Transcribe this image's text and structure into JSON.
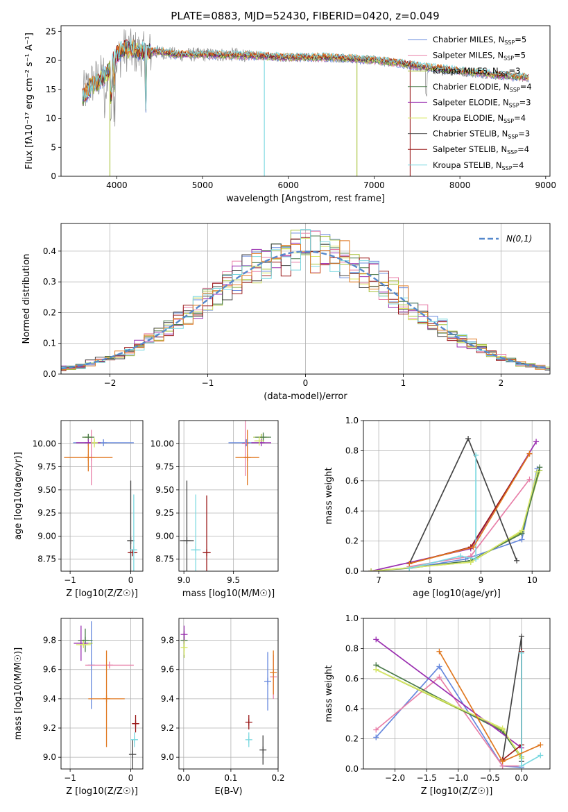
{
  "figure_title": "PLATE=0883, MJD=52430, FIBERID=0420, z=0.049",
  "colors": {
    "chabrier_miles": "#6688dd",
    "salpeter_miles": "#e87fa8",
    "kroupa_miles": "#a7c23a",
    "chabrier_elodie": "#4a7a4a",
    "salpeter_elodie": "#9a2eb0",
    "kroupa_elodie": "#d8e86a",
    "chabrier_stelib": "#444444",
    "salpeter_stelib": "#9a1a1a",
    "kroupa_stelib": "#7ad8e0",
    "data_spectrum": "#888888",
    "orange_model": "#e07820",
    "normal_curve": "#5588cc",
    "grid": "#b0b0b0"
  },
  "chart_data": [
    {
      "id": "spectrum",
      "type": "line",
      "title": "PLATE=0883, MJD=52430, FIBERID=0420, z=0.049",
      "xlabel": "wavelength [Angstrom, rest frame]",
      "ylabel": "Flux [f$_\\lambda$10$^{-17}$ erg cm$^{-2}$ s$^{-1}$ A$^{-1}$]",
      "ylabel_display": "Flux [fλ10⁻¹⁷ erg cm⁻² s⁻¹ A⁻¹]",
      "xlim": [
        3350,
        9050
      ],
      "ylim": [
        0,
        26
      ],
      "xticks": [
        4000,
        5000,
        6000,
        7000,
        8000,
        9000
      ],
      "yticks": [
        0,
        5,
        10,
        15,
        20,
        25
      ],
      "grid": false,
      "legend_position": "top-right",
      "legend": [
        {
          "label": "Chabrier MILES, N",
          "sub": "SSP",
          "tail": "=5",
          "color_key": "chabrier_miles"
        },
        {
          "label": "Salpeter MILES, N",
          "sub": "SSP",
          "tail": "=5",
          "color_key": "salpeter_miles"
        },
        {
          "label": "Kroupa MILES, N",
          "sub": "SSP",
          "tail": "=3",
          "color_key": "kroupa_miles"
        },
        {
          "label": "Chabrier ELODIE, N",
          "sub": "SSP",
          "tail": "=4",
          "color_key": "chabrier_elodie"
        },
        {
          "label": "Salpeter ELODIE, N",
          "sub": "SSP",
          "tail": "=3",
          "color_key": "salpeter_elodie"
        },
        {
          "label": "Kroupa ELODIE, N",
          "sub": "SSP",
          "tail": "=4",
          "color_key": "kroupa_elodie"
        },
        {
          "label": "Chabrier STELIB, N",
          "sub": "SSP",
          "tail": "=3",
          "color_key": "chabrier_stelib"
        },
        {
          "label": "Salpeter STELIB, N",
          "sub": "SSP",
          "tail": "=4",
          "color_key": "salpeter_stelib"
        },
        {
          "label": "Kroupa STELIB, N",
          "sub": "SSP",
          "tail": "=4",
          "color_key": "kroupa_stelib"
        }
      ],
      "data_envelope": {
        "x": [
          3600,
          3700,
          3800,
          3900,
          4000,
          4100,
          4200,
          4300,
          4500,
          4700,
          5000,
          5500,
          6000,
          6500,
          7000,
          7300,
          7600,
          8000,
          8400,
          8800
        ],
        "y": [
          14,
          16,
          17,
          18,
          20,
          22,
          21.5,
          21,
          21.5,
          21,
          21,
          21,
          20.5,
          20.5,
          20,
          19.5,
          18.5,
          18,
          17.5,
          17
        ]
      },
      "model_envelope": {
        "x": [
          3600,
          3700,
          3800,
          3900,
          4000,
          4100,
          4200,
          4300,
          4500,
          4700,
          5000,
          5500,
          6000,
          6500,
          7000,
          7300,
          7600,
          8000,
          8400,
          8800
        ],
        "y": [
          13.5,
          15.5,
          16.5,
          18,
          21,
          22,
          21.8,
          21.5,
          21.5,
          21,
          21,
          20.8,
          20.5,
          20.5,
          20,
          19.5,
          18.8,
          18.2,
          17.5,
          17
        ]
      },
      "sky_dips": [
        {
          "x": 3920,
          "color_key": "kroupa_miles"
        },
        {
          "x": 5720,
          "color_key": "kroupa_stelib"
        },
        {
          "x": 6800,
          "color_key": "kroupa_miles"
        },
        {
          "x": 7420,
          "color_key": "salpeter_stelib"
        }
      ]
    },
    {
      "id": "residual_hist",
      "type": "histogram",
      "xlabel": "(data-model)/error",
      "ylabel": "Normed distribution",
      "xlim": [
        -2.5,
        2.5
      ],
      "ylim": [
        0,
        0.49
      ],
      "xticks": [
        -2,
        -1,
        0,
        1,
        2
      ],
      "yticks": [
        0.0,
        0.1,
        0.2,
        0.3,
        0.4
      ],
      "grid": true,
      "legend_position": "top-right",
      "legend_label": "N(0,1)",
      "bin_width": 0.1,
      "models": [
        "chabrier_miles",
        "salpeter_miles",
        "kroupa_miles",
        "chabrier_elodie",
        "salpeter_elodie",
        "kroupa_elodie",
        "chabrier_stelib",
        "salpeter_stelib",
        "kroupa_stelib",
        "orange_model"
      ]
    },
    {
      "id": "age_vs_Z",
      "type": "scatter",
      "xlabel": "Z [log10(Z/Z☉)]",
      "ylabel": "age  [log10(age/yr)]",
      "xlim": [
        -1.15,
        0.2
      ],
      "ylim": [
        8.62,
        10.25
      ],
      "xticks": [
        -1,
        0
      ],
      "yticks": [
        8.75,
        9.0,
        9.25,
        9.5,
        9.75,
        10.0
      ],
      "grid": true,
      "points": [
        {
          "x": -0.45,
          "y": 10.01,
          "xerr": 0.5,
          "yerr": 0.0,
          "color_key": "chabrier_miles"
        },
        {
          "x": -0.65,
          "y": 9.85,
          "xerr": 0.0,
          "yerr": 0.3,
          "color_key": "salpeter_miles"
        },
        {
          "x": -0.7,
          "y": 10.07,
          "xerr": 0.1,
          "yerr": 0.0,
          "color_key": "kroupa_miles"
        },
        {
          "x": -0.7,
          "y": 10.07,
          "xerr": 0.1,
          "yerr": 0.0,
          "color_key": "chabrier_elodie"
        },
        {
          "x": -0.7,
          "y": 10.01,
          "xerr": 0.2,
          "yerr": 0.0,
          "color_key": "salpeter_elodie"
        },
        {
          "x": -0.6,
          "y": 10.01,
          "xerr": 0.05,
          "yerr": 0.05,
          "color_key": "kroupa_elodie"
        },
        {
          "x": 0.0,
          "y": 8.95,
          "xerr": 0.06,
          "yerr": 0.65,
          "color_key": "chabrier_stelib"
        },
        {
          "x": 0.03,
          "y": 8.82,
          "xerr": 0.08,
          "yerr": 0.0,
          "color_key": "salpeter_stelib"
        },
        {
          "x": 0.05,
          "y": 8.85,
          "xerr": 0.05,
          "yerr": 0.6,
          "color_key": "kroupa_stelib"
        },
        {
          "x": -0.7,
          "y": 9.85,
          "xerr": 0.4,
          "yerr": 0.15,
          "color_key": "orange_model"
        }
      ]
    },
    {
      "id": "age_vs_mass",
      "type": "scatter",
      "xlabel": "mass [log10(M/M☉)]",
      "ylabel": "",
      "xlim": [
        8.95,
        9.95
      ],
      "ylim": [
        8.62,
        10.25
      ],
      "xticks": [
        9.0,
        9.5
      ],
      "yticks": [
        8.75,
        9.0,
        9.25,
        9.5,
        9.75,
        10.0
      ],
      "grid": true,
      "points": [
        {
          "x": 9.63,
          "y": 10.01,
          "xerr": 0.18,
          "yerr": 0.0,
          "color_key": "chabrier_miles"
        },
        {
          "x": 9.62,
          "y": 10.0,
          "xerr": 0.0,
          "yerr": 0.35,
          "color_key": "salpeter_miles"
        },
        {
          "x": 9.78,
          "y": 10.07,
          "xerr": 0.08,
          "yerr": 0.0,
          "color_key": "kroupa_miles"
        },
        {
          "x": 9.8,
          "y": 10.07,
          "xerr": 0.08,
          "yerr": 0.05,
          "color_key": "chabrier_elodie"
        },
        {
          "x": 9.78,
          "y": 10.01,
          "xerr": 0.1,
          "yerr": 0.0,
          "color_key": "salpeter_elodie"
        },
        {
          "x": 9.76,
          "y": 10.03,
          "xerr": 0.05,
          "yerr": 0.05,
          "color_key": "kroupa_elodie"
        },
        {
          "x": 9.03,
          "y": 8.95,
          "xerr": 0.07,
          "yerr": 0.65,
          "color_key": "chabrier_stelib"
        },
        {
          "x": 9.23,
          "y": 8.82,
          "xerr": 0.04,
          "yerr": 0.62,
          "color_key": "salpeter_stelib"
        },
        {
          "x": 9.12,
          "y": 8.85,
          "xerr": 0.05,
          "yerr": 0.6,
          "color_key": "kroupa_stelib"
        },
        {
          "x": 9.64,
          "y": 9.85,
          "xerr": 0.12,
          "yerr": 0.3,
          "color_key": "orange_model"
        }
      ]
    },
    {
      "id": "massweight_vs_age",
      "type": "line",
      "xlabel": "age  [log10(age/yr)]",
      "ylabel": "mass weight",
      "xlim": [
        6.7,
        10.35
      ],
      "ylim": [
        0,
        1.0
      ],
      "xticks": [
        7,
        8,
        9,
        10
      ],
      "yticks": [
        0.0,
        0.2,
        0.4,
        0.6,
        0.8,
        1.0
      ],
      "grid": true,
      "series": [
        {
          "color_key": "chabrier_miles",
          "x": [
            7.6,
            8.7,
            9.8,
            10.1
          ],
          "y": [
            0.02,
            0.08,
            0.21,
            0.68
          ]
        },
        {
          "color_key": "salpeter_miles",
          "x": [
            7.6,
            8.8,
            9.95
          ],
          "y": [
            0.03,
            0.1,
            0.61
          ]
        },
        {
          "color_key": "kroupa_miles",
          "x": [
            6.85,
            8.8,
            9.8,
            10.15
          ],
          "y": [
            0.0,
            0.06,
            0.26,
            0.67
          ]
        },
        {
          "color_key": "chabrier_elodie",
          "x": [
            6.85,
            7.6,
            8.8,
            9.8,
            10.15
          ],
          "y": [
            0.0,
            0.02,
            0.07,
            0.25,
            0.69
          ]
        },
        {
          "color_key": "salpeter_elodie",
          "x": [
            6.85,
            8.8,
            10.08
          ],
          "y": [
            0.0,
            0.15,
            0.86
          ]
        },
        {
          "color_key": "kroupa_elodie",
          "x": [
            6.85,
            8.8,
            9.8,
            10.1
          ],
          "y": [
            0.0,
            0.06,
            0.27,
            0.66
          ]
        },
        {
          "color_key": "chabrier_stelib",
          "x": [
            7.6,
            8.75,
            9.7
          ],
          "y": [
            0.05,
            0.88,
            0.07
          ]
        },
        {
          "color_key": "salpeter_stelib",
          "x": [
            7.6,
            8.8,
            9.95
          ],
          "y": [
            0.05,
            0.16,
            0.78
          ]
        },
        {
          "color_key": "kroupa_stelib",
          "x": [
            7.6,
            8.6,
            8.9,
            8.9
          ],
          "y": [
            0.02,
            0.1,
            0.08,
            0.77
          ]
        },
        {
          "color_key": "orange_model",
          "x": [
            7.6,
            8.85,
            9.95
          ],
          "y": [
            0.05,
            0.16,
            0.78
          ]
        }
      ]
    },
    {
      "id": "mass_vs_Z",
      "type": "scatter",
      "xlabel": "Z [log10(Z/Z☉)]",
      "ylabel": "mass [log10(M/M☉)]",
      "xlim": [
        -1.15,
        0.2
      ],
      "ylim": [
        8.92,
        9.95
      ],
      "xticks": [
        -1,
        0
      ],
      "yticks": [
        9.0,
        9.2,
        9.4,
        9.6,
        9.8
      ],
      "grid": true,
      "points": [
        {
          "x": -0.65,
          "y": 9.63,
          "xerr": 0.0,
          "yerr": 0.3,
          "color_key": "chabrier_miles"
        },
        {
          "x": -0.35,
          "y": 9.63,
          "xerr": 0.4,
          "yerr": 0.0,
          "color_key": "salpeter_miles"
        },
        {
          "x": -0.78,
          "y": 9.78,
          "xerr": 0.15,
          "yerr": 0.0,
          "color_key": "kroupa_miles"
        },
        {
          "x": -0.75,
          "y": 9.8,
          "xerr": 0.12,
          "yerr": 0.08,
          "color_key": "chabrier_elodie"
        },
        {
          "x": -0.82,
          "y": 9.78,
          "xerr": 0.12,
          "yerr": 0.12,
          "color_key": "salpeter_elodie"
        },
        {
          "x": -0.78,
          "y": 9.77,
          "xerr": 0.12,
          "yerr": 0.0,
          "color_key": "kroupa_elodie"
        },
        {
          "x": 0.03,
          "y": 9.02,
          "xerr": 0.06,
          "yerr": 0.1,
          "color_key": "chabrier_stelib"
        },
        {
          "x": 0.08,
          "y": 9.23,
          "xerr": 0.06,
          "yerr": 0.06,
          "color_key": "salpeter_stelib"
        },
        {
          "x": 0.06,
          "y": 9.12,
          "xerr": 0.06,
          "yerr": 0.05,
          "color_key": "kroupa_stelib"
        },
        {
          "x": -0.4,
          "y": 9.4,
          "xerr": 0.3,
          "yerr": 0.33,
          "color_key": "orange_model"
        }
      ]
    },
    {
      "id": "mass_vs_ebv",
      "type": "scatter",
      "xlabel": "E(B-V)",
      "ylabel": "",
      "xlim": [
        -0.01,
        0.2
      ],
      "ylim": [
        8.92,
        9.95
      ],
      "xticks": [
        0.0,
        0.1,
        0.2
      ],
      "yticks": [
        9.0,
        9.2,
        9.4,
        9.6,
        9.8
      ],
      "grid": true,
      "points": [
        {
          "x": 0.178,
          "y": 9.52,
          "xerr": 0.0,
          "yerr": 0.2,
          "color_key": "chabrier_miles"
        },
        {
          "x": 0.19,
          "y": 9.55,
          "xerr": 0.0,
          "yerr": 0.15,
          "color_key": "salpeter_miles"
        },
        {
          "x": 0.001,
          "y": 9.75,
          "xerr": 0.0,
          "yerr": 0.07,
          "color_key": "kroupa_miles"
        },
        {
          "x": 0.001,
          "y": 9.8,
          "xerr": 0.0,
          "yerr": 0.05,
          "color_key": "chabrier_elodie"
        },
        {
          "x": 0.001,
          "y": 9.84,
          "xerr": 0.0,
          "yerr": 0.06,
          "color_key": "salpeter_elodie"
        },
        {
          "x": 0.001,
          "y": 9.75,
          "xerr": 0.0,
          "yerr": 0.05,
          "color_key": "kroupa_elodie"
        },
        {
          "x": 0.168,
          "y": 9.05,
          "xerr": 0.0,
          "yerr": 0.1,
          "color_key": "chabrier_stelib"
        },
        {
          "x": 0.138,
          "y": 9.24,
          "xerr": 0.0,
          "yerr": 0.05,
          "color_key": "salpeter_stelib"
        },
        {
          "x": 0.138,
          "y": 9.12,
          "xerr": 0.0,
          "yerr": 0.05,
          "color_key": "kroupa_stelib"
        },
        {
          "x": 0.19,
          "y": 9.58,
          "xerr": 0.0,
          "yerr": 0.15,
          "color_key": "orange_model"
        }
      ]
    },
    {
      "id": "massweight_vs_Z",
      "type": "line",
      "xlabel": "Z [log10(Z/Z☉)]",
      "ylabel": "mass weight",
      "xlim": [
        -2.5,
        0.45
      ],
      "ylim": [
        0,
        1.0
      ],
      "xticks": [
        -2.0,
        -1.5,
        -1.0,
        -0.5,
        0.0
      ],
      "yticks": [
        0.0,
        0.2,
        0.4,
        0.6,
        0.8,
        1.0
      ],
      "grid": true,
      "series": [
        {
          "color_key": "chabrier_miles",
          "x": [
            -2.3,
            -1.3,
            -0.3,
            0.0
          ],
          "y": [
            0.21,
            0.68,
            0.02,
            0.01
          ]
        },
        {
          "color_key": "salpeter_miles",
          "x": [
            -2.3,
            -1.3,
            -0.3,
            0.0
          ],
          "y": [
            0.26,
            0.61,
            0.02,
            0.02
          ]
        },
        {
          "color_key": "kroupa_miles",
          "x": [
            -2.3,
            -0.3,
            0.0
          ],
          "y": [
            0.66,
            0.26,
            0.08
          ]
        },
        {
          "color_key": "chabrier_elodie",
          "x": [
            -2.3,
            -0.3,
            0.0
          ],
          "y": [
            0.69,
            0.25,
            0.07
          ]
        },
        {
          "color_key": "salpeter_elodie",
          "x": [
            -2.3,
            0.0
          ],
          "y": [
            0.86,
            0.14
          ]
        },
        {
          "color_key": "kroupa_elodie",
          "x": [
            -2.3,
            -0.3,
            0.0
          ],
          "y": [
            0.66,
            0.27,
            0.07
          ]
        },
        {
          "color_key": "chabrier_stelib",
          "x": [
            -0.3,
            0.0,
            0.0
          ],
          "y": [
            0.06,
            0.88,
            0.05
          ]
        },
        {
          "color_key": "salpeter_stelib",
          "x": [
            -0.3,
            0.0,
            0.0
          ],
          "y": [
            0.06,
            0.16,
            0.78
          ]
        },
        {
          "color_key": "kroupa_stelib",
          "x": [
            0.0,
            0.0,
            0.3
          ],
          "y": [
            0.77,
            0.02,
            0.09
          ]
        },
        {
          "color_key": "orange_model",
          "x": [
            -1.3,
            -0.3,
            0.3
          ],
          "y": [
            0.78,
            0.05,
            0.16
          ]
        }
      ]
    }
  ]
}
